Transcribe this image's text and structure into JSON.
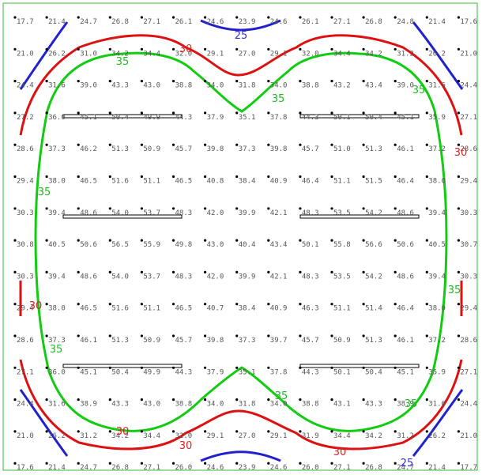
{
  "grid": {
    "rows": [
      [
        "17.7",
        "21.4",
        "24.7",
        "26.8",
        "27.1",
        "26.1",
        "24.6",
        "23.9",
        "24.6",
        "26.1",
        "27.1",
        "26.8",
        "24.8",
        "21.4",
        "17.6"
      ],
      [
        "21.0",
        "26.2",
        "31.0",
        "34.2",
        "34.4",
        "32.0",
        "29.1",
        "27.0",
        "29.1",
        "32.0",
        "34.4",
        "34.2",
        "31.2",
        "26.2",
        "21.0"
      ],
      [
        "24.4",
        "31.6",
        "39.0",
        "43.3",
        "43.0",
        "38.8",
        "34.0",
        "31.8",
        "34.0",
        "38.8",
        "43.2",
        "43.4",
        "39.0",
        "31.6",
        "24.4"
      ],
      [
        "27.2",
        "36.0",
        "45.1",
        "50.4",
        "49.9",
        "44.3",
        "37.9",
        "35.1",
        "37.8",
        "44.3",
        "50.1",
        "50.4",
        "45.1",
        "35.9",
        "27.1"
      ],
      [
        "28.6",
        "37.3",
        "46.2",
        "51.3",
        "50.9",
        "45.7",
        "39.8",
        "37.3",
        "39.8",
        "45.7",
        "51.0",
        "51.3",
        "46.1",
        "37.2",
        "28.6"
      ],
      [
        "29.4",
        "38.0",
        "46.5",
        "51.6",
        "51.1",
        "46.5",
        "40.8",
        "38.4",
        "40.9",
        "46.4",
        "51.1",
        "51.5",
        "46.4",
        "38.0",
        "29.4"
      ],
      [
        "30.3",
        "39.4",
        "48.6",
        "54.0",
        "53.7",
        "48.3",
        "42.0",
        "39.9",
        "42.1",
        "48.3",
        "53.5",
        "54.2",
        "48.6",
        "39.4",
        "30.3"
      ],
      [
        "30.8",
        "40.5",
        "50.6",
        "56.5",
        "55.9",
        "49.8",
        "43.0",
        "40.4",
        "43.4",
        "50.1",
        "55.8",
        "56.6",
        "50.6",
        "40.5",
        "30.7"
      ],
      [
        "30.3",
        "39.4",
        "48.6",
        "54.0",
        "53.7",
        "48.3",
        "42.0",
        "39.9",
        "42.1",
        "48.3",
        "53.5",
        "54.2",
        "48.6",
        "39.4",
        "30.3"
      ],
      [
        "29.4",
        "38.0",
        "46.5",
        "51.6",
        "51.1",
        "46.5",
        "40.7",
        "38.4",
        "40.9",
        "46.3",
        "51.1",
        "51.4",
        "46.4",
        "38.0",
        "29.4"
      ],
      [
        "28.6",
        "37.3",
        "46.1",
        "51.3",
        "50.9",
        "45.7",
        "39.8",
        "37.3",
        "39.7",
        "45.7",
        "50.9",
        "51.3",
        "46.1",
        "37.2",
        "28.6"
      ],
      [
        "27.1",
        "36.0",
        "45.1",
        "50.4",
        "49.9",
        "44.3",
        "37.9",
        "35.1",
        "37.8",
        "44.3",
        "50.1",
        "50.4",
        "45.1",
        "35.9",
        "27.1"
      ],
      [
        "24.4",
        "31.6",
        "38.9",
        "43.3",
        "43.0",
        "38.8",
        "34.0",
        "31.8",
        "34.0",
        "38.8",
        "43.1",
        "43.3",
        "38.9",
        "31.6",
        "24.4"
      ],
      [
        "21.0",
        "26.2",
        "31.2",
        "34.2",
        "34.4",
        "32.0",
        "29.1",
        "27.0",
        "29.1",
        "31.9",
        "34.4",
        "34.2",
        "31.2",
        "26.2",
        "21.0"
      ],
      [
        "17.6",
        "21.4",
        "24.7",
        "26.8",
        "27.1",
        "26.0",
        "24.6",
        "23.9",
        "24.6",
        "26.0",
        "27.1",
        "26.8",
        "24.7",
        "21.4",
        "17.7"
      ]
    ]
  },
  "contours": [
    {
      "level": "25",
      "color": "#2222cc"
    },
    {
      "level": "30",
      "color": "#dd1111"
    },
    {
      "level": "35",
      "color": "#11cc11"
    }
  ],
  "contour_labels": [
    {
      "text": "25",
      "color": "#3333cc"
    },
    {
      "text": "30",
      "color": "#dd2222"
    },
    {
      "text": "35",
      "color": "#22bb22"
    },
    {
      "text": "35",
      "color": "#22bb22"
    },
    {
      "text": "35",
      "color": "#22bb22"
    },
    {
      "text": "30",
      "color": "#dd2222"
    },
    {
      "text": "35",
      "color": "#22bb22"
    },
    {
      "text": "30",
      "color": "#dd2222"
    },
    {
      "text": "35",
      "color": "#22bb22"
    },
    {
      "text": "35",
      "color": "#22bb22"
    },
    {
      "text": "35",
      "color": "#22bb22"
    },
    {
      "text": "35",
      "color": "#22bb22"
    },
    {
      "text": "30",
      "color": "#dd2222"
    },
    {
      "text": "30",
      "color": "#dd2222"
    },
    {
      "text": "25",
      "color": "#3333cc"
    },
    {
      "text": "30",
      "color": "#dd2222"
    }
  ],
  "colors": {
    "frame": "#33bb33",
    "fixture": "#000000"
  }
}
